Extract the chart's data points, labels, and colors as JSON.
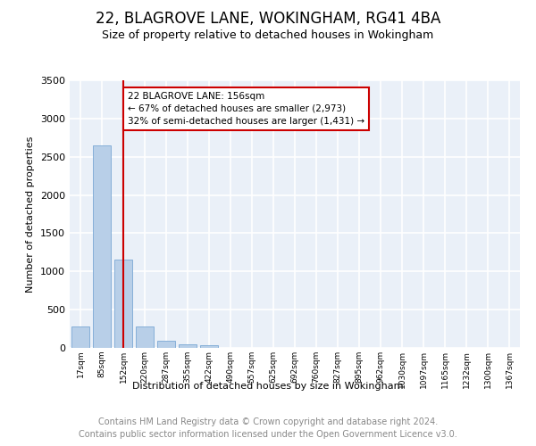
{
  "title": "22, BLAGROVE LANE, WOKINGHAM, RG41 4BA",
  "subtitle": "Size of property relative to detached houses in Wokingham",
  "xlabel": "Distribution of detached houses by size in Wokingham",
  "ylabel": "Number of detached properties",
  "bin_labels": [
    "17sqm",
    "85sqm",
    "152sqm",
    "220sqm",
    "287sqm",
    "355sqm",
    "422sqm",
    "490sqm",
    "557sqm",
    "625sqm",
    "692sqm",
    "760sqm",
    "827sqm",
    "895sqm",
    "962sqm",
    "1030sqm",
    "1097sqm",
    "1165sqm",
    "1232sqm",
    "1300sqm",
    "1367sqm"
  ],
  "bar_values": [
    280,
    2650,
    1150,
    285,
    90,
    45,
    30,
    0,
    0,
    0,
    0,
    0,
    0,
    0,
    0,
    0,
    0,
    0,
    0,
    0,
    0
  ],
  "bar_color": "#b8cfe8",
  "bar_edge_color": "#7aa8d4",
  "vline_x_index": 2,
  "vline_color": "#cc0000",
  "annotation_title": "22 BLAGROVE LANE: 156sqm",
  "annotation_line1": "← 67% of detached houses are smaller (2,973)",
  "annotation_line2": "32% of semi-detached houses are larger (1,431) →",
  "annotation_box_color": "#cc0000",
  "ylim": [
    0,
    3500
  ],
  "yticks": [
    0,
    500,
    1000,
    1500,
    2000,
    2500,
    3000,
    3500
  ],
  "background_color": "#eaf0f8",
  "grid_color": "#ffffff",
  "footer_line1": "Contains HM Land Registry data © Crown copyright and database right 2024.",
  "footer_line2": "Contains public sector information licensed under the Open Government Licence v3.0.",
  "title_fontsize": 12,
  "subtitle_fontsize": 9,
  "footer_fontsize": 7,
  "bar_width": 0.85
}
